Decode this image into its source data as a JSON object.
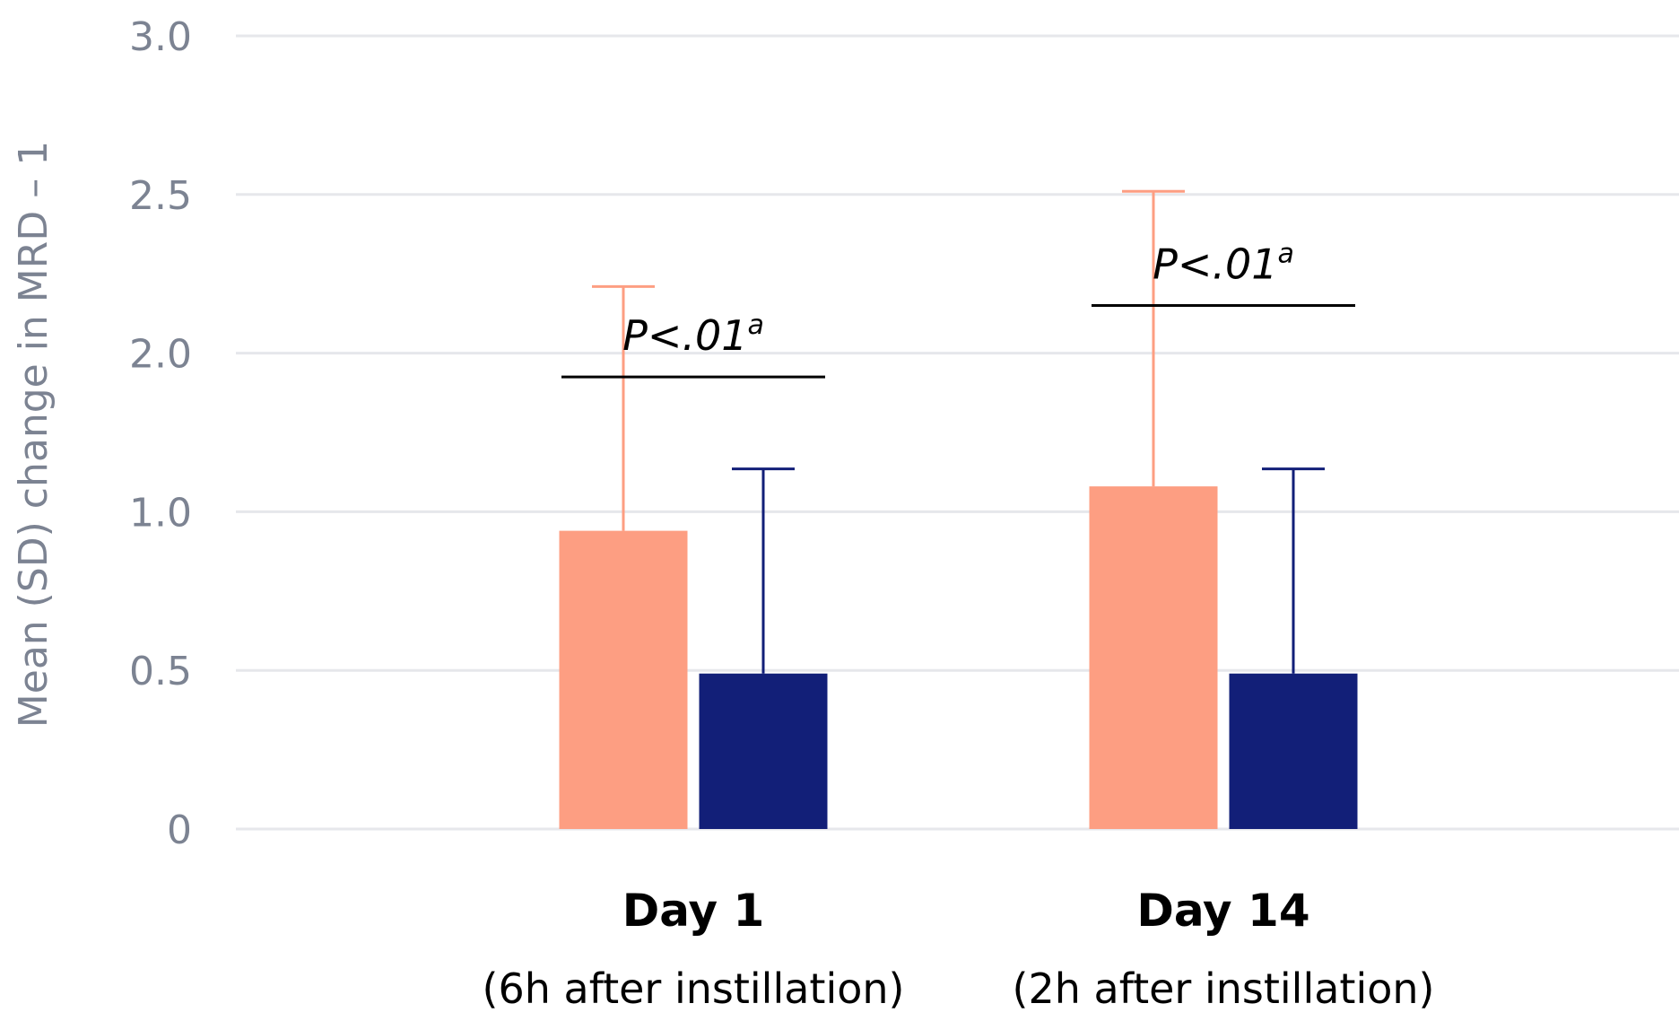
{
  "chart_data": {
    "type": "bar",
    "ylabel": "Mean (SD) change in MRD – 1",
    "y_ticks": [
      "0",
      "0.5",
      "1.0",
      "2.0",
      "2.5",
      "3.0"
    ],
    "categories": [
      {
        "name": "Day 1",
        "sub": "(6h after instillation)"
      },
      {
        "name": "Day 14",
        "sub": "(2h after instillation)"
      }
    ],
    "series": [
      {
        "color": "#fd9e82",
        "values": [
          0.94,
          1.16
        ],
        "err_top": [
          2.21,
          2.51
        ]
      },
      {
        "color": "#121f78",
        "values": [
          0.49,
          0.49
        ],
        "err_top": [
          1.27,
          1.27
        ]
      }
    ],
    "annotations": [
      {
        "category": 0,
        "text": "P<.01",
        "sup": "a",
        "level": 1.85
      },
      {
        "category": 1,
        "text": "P<.01",
        "sup": "a",
        "level": 2.15
      }
    ],
    "grid": true,
    "colors": {
      "grid": "#e6e7eb",
      "text_muted": "#7c8392",
      "err_line_0": "#fd9e82",
      "err_line_1": "#121f78"
    }
  }
}
